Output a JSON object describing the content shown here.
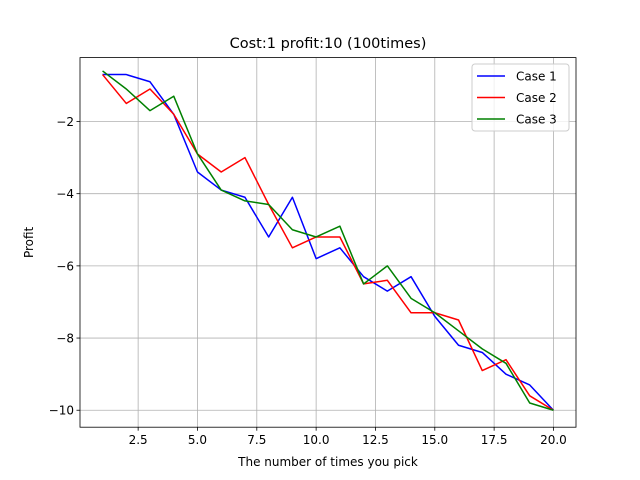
{
  "chart_data": {
    "type": "line",
    "title": "Cost:1 profit:10 (100times)",
    "xlabel": "The number of times you pick",
    "ylabel": "Profit",
    "xlim": [
      0.05,
      20.95
    ],
    "ylim": [
      -10.47,
      -0.23
    ],
    "xticks": [
      2.5,
      5.0,
      7.5,
      10.0,
      12.5,
      15.0,
      17.5,
      20.0
    ],
    "xtick_labels": [
      "2.5",
      "5.0",
      "7.5",
      "10.0",
      "12.5",
      "15.0",
      "17.5",
      "20.0"
    ],
    "yticks": [
      -2,
      -4,
      -6,
      -8,
      -10
    ],
    "ytick_labels": [
      "−2",
      "−4",
      "−6",
      "−8",
      "−10"
    ],
    "grid": true,
    "legend_position": "top-right",
    "x": [
      1,
      2,
      3,
      4,
      5,
      6,
      7,
      8,
      9,
      10,
      11,
      12,
      13,
      14,
      15,
      16,
      17,
      18,
      19,
      20
    ],
    "series": [
      {
        "name": "Case 1",
        "color": "#0000ff",
        "values": [
          -0.7,
          -0.7,
          -0.9,
          -1.8,
          -3.4,
          -3.9,
          -4.1,
          -5.2,
          -4.1,
          -5.8,
          -5.5,
          -6.3,
          -6.7,
          -6.3,
          -7.4,
          -8.2,
          -8.4,
          -9.0,
          -9.3,
          -10.0
        ]
      },
      {
        "name": "Case 2",
        "color": "#ff0000",
        "values": [
          -0.7,
          -1.5,
          -1.1,
          -1.8,
          -2.9,
          -3.4,
          -3.0,
          -4.3,
          -5.5,
          -5.2,
          -5.2,
          -6.5,
          -6.4,
          -7.3,
          -7.3,
          -7.5,
          -8.9,
          -8.6,
          -9.6,
          -10.0
        ]
      },
      {
        "name": "Case 3",
        "color": "#008000",
        "values": [
          -0.6,
          -1.1,
          -1.7,
          -1.3,
          -2.9,
          -3.9,
          -4.2,
          -4.3,
          -5.0,
          -5.2,
          -4.9,
          -6.5,
          -6.0,
          -6.9,
          -7.3,
          -7.8,
          -8.3,
          -8.7,
          -9.8,
          -10.0
        ]
      }
    ]
  }
}
